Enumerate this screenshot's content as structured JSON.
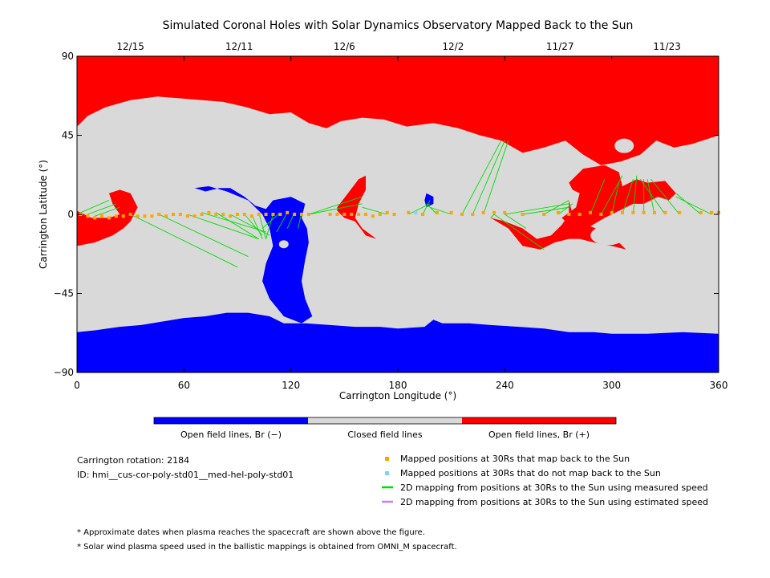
{
  "chart_data": {
    "type": "map",
    "title": "Simulated Coronal Holes with Solar Dynamics Observatory Mapped Back to the Sun",
    "xlabel": "Carrington Longitude (°)",
    "ylabel": "Carrington Latitude (°)",
    "xlim": [
      0,
      360
    ],
    "ylim": [
      -90,
      90
    ],
    "x_ticks": [
      0,
      60,
      120,
      180,
      240,
      300,
      360
    ],
    "y_ticks": [
      -90,
      -45,
      0,
      45,
      90
    ],
    "x_tick_labels": [
      "0",
      "60",
      "120",
      "180",
      "240",
      "300",
      "360"
    ],
    "y_tick_labels": [
      "−90",
      "−45",
      "0",
      "45",
      "90"
    ],
    "top_dates": [
      {
        "label": "12/15",
        "lon": 30
      },
      {
        "label": "12/11",
        "lon": 91
      },
      {
        "label": "12/6",
        "lon": 150
      },
      {
        "label": "12/2",
        "lon": 211
      },
      {
        "label": "11/27",
        "lon": 271
      },
      {
        "label": "11/23",
        "lon": 331
      }
    ],
    "colors": {
      "open_negative": "#0000ff",
      "closed": "#d9d9d9",
      "open_positive": "#ff0000",
      "mapped_yes": "#ffa500",
      "mapped_no": "#87cefa",
      "measured_line": "#00dd00",
      "estimated_line": "#c080ff"
    },
    "colorbar": [
      {
        "label": "Open field lines, Br (−)",
        "color": "#0000ff"
      },
      {
        "label": "Closed field lines",
        "color": "#d9d9d9"
      },
      {
        "label": "Open field lines, Br (+)",
        "color": "#ff0000"
      }
    ],
    "carrington_rotation": "Carrington rotation: 2184",
    "model_id": "ID: hmi__cus-cor-poly-std01__med-hel-poly-std01",
    "legend": [
      {
        "label": "Mapped positions at 30Rs that map back to the Sun",
        "kind": "square",
        "color": "#ffa500"
      },
      {
        "label": "Mapped positions at 30Rs that do not map back to the Sun",
        "kind": "square",
        "color": "#87cefa"
      },
      {
        "label": "2D mapping from positions at 30Rs to the Sun using measured speed",
        "kind": "line",
        "color": "#00dd00"
      },
      {
        "label": "2D mapping from positions at 30Rs to the Sun using estimated speed",
        "kind": "line",
        "color": "#c080ff"
      }
    ],
    "footnotes": [
      "* Approximate dates when plasma reaches the spacecraft are shown above the figure.",
      "* Solar wind plasma speed used in the ballistic mappings is obtained from OMNI_M spacecraft."
    ],
    "regions": {
      "north_positive_cap": [
        [
          0,
          90
        ],
        [
          360,
          90
        ],
        [
          360,
          45
        ],
        [
          345,
          40
        ],
        [
          335,
          38
        ],
        [
          325,
          42
        ],
        [
          316,
          34
        ],
        [
          305,
          30
        ],
        [
          294,
          28
        ],
        [
          284,
          34
        ],
        [
          274,
          42
        ],
        [
          262,
          38
        ],
        [
          250,
          35
        ],
        [
          238,
          42
        ],
        [
          226,
          45
        ],
        [
          214,
          49
        ],
        [
          200,
          52
        ],
        [
          185,
          50
        ],
        [
          172,
          54
        ],
        [
          160,
          55
        ],
        [
          148,
          53
        ],
        [
          140,
          49
        ],
        [
          130,
          52
        ],
        [
          120,
          58
        ],
        [
          108,
          57
        ],
        [
          95,
          61
        ],
        [
          82,
          64
        ],
        [
          70,
          65
        ],
        [
          58,
          66
        ],
        [
          45,
          67
        ],
        [
          30,
          65
        ],
        [
          16,
          61
        ],
        [
          6,
          56
        ],
        [
          0,
          50
        ]
      ],
      "south_negative_cap": [
        [
          0,
          -90
        ],
        [
          360,
          -90
        ],
        [
          360,
          -68
        ],
        [
          340,
          -67
        ],
        [
          320,
          -68
        ],
        [
          300,
          -68
        ],
        [
          290,
          -67
        ],
        [
          276,
          -67
        ],
        [
          262,
          -65
        ],
        [
          248,
          -64
        ],
        [
          232,
          -63
        ],
        [
          220,
          -62
        ],
        [
          205,
          -62
        ],
        [
          200,
          -60
        ],
        [
          195,
          -64
        ],
        [
          180,
          -65
        ],
        [
          170,
          -64
        ],
        [
          156,
          -64
        ],
        [
          142,
          -63
        ],
        [
          128,
          -62
        ],
        [
          116,
          -62
        ],
        [
          108,
          -58
        ],
        [
          96,
          -56
        ],
        [
          84,
          -56
        ],
        [
          72,
          -58
        ],
        [
          60,
          -59
        ],
        [
          48,
          -61
        ],
        [
          36,
          -63
        ],
        [
          24,
          -64
        ],
        [
          10,
          -66
        ],
        [
          0,
          -67
        ]
      ],
      "negative_hole_central": [
        [
          66,
          15
        ],
        [
          74,
          16
        ],
        [
          84,
          13
        ],
        [
          96,
          8
        ],
        [
          104,
          0
        ],
        [
          108,
          -8
        ],
        [
          110,
          -18
        ],
        [
          106,
          -28
        ],
        [
          104,
          -38
        ],
        [
          108,
          -48
        ],
        [
          116,
          -58
        ],
        [
          126,
          -62
        ],
        [
          132,
          -58
        ],
        [
          128,
          -48
        ],
        [
          126,
          -38
        ],
        [
          128,
          -26
        ],
        [
          130,
          -16
        ],
        [
          129,
          -8
        ],
        [
          126,
          -2
        ],
        [
          128,
          6
        ],
        [
          120,
          10
        ],
        [
          110,
          8
        ],
        [
          106,
          3
        ],
        [
          100,
          5
        ],
        [
          94,
          10
        ],
        [
          86,
          15
        ],
        [
          80,
          15
        ],
        [
          72,
          13
        ],
        [
          66,
          15
        ]
      ],
      "negative_hole_small": [
        [
          196,
          12
        ],
        [
          200,
          10
        ],
        [
          200,
          6
        ],
        [
          196,
          4
        ],
        [
          195,
          8
        ]
      ],
      "positive_hole_left": [
        [
          0,
          2
        ],
        [
          8,
          -2
        ],
        [
          18,
          -2
        ],
        [
          24,
          0
        ],
        [
          20,
          6
        ],
        [
          18,
          12
        ],
        [
          24,
          14
        ],
        [
          30,
          12
        ],
        [
          34,
          4
        ],
        [
          30,
          -4
        ],
        [
          26,
          -8
        ],
        [
          20,
          -12
        ],
        [
          10,
          -16
        ],
        [
          0,
          -18
        ]
      ],
      "positive_hole_mid": [
        [
          146,
          2
        ],
        [
          150,
          -2
        ],
        [
          156,
          -4
        ],
        [
          162,
          -12
        ],
        [
          168,
          -14
        ],
        [
          160,
          -8
        ],
        [
          156,
          -2
        ],
        [
          158,
          6
        ],
        [
          162,
          14
        ],
        [
          162,
          22
        ],
        [
          158,
          20
        ],
        [
          152,
          12
        ],
        [
          146,
          4
        ]
      ],
      "positive_band_right": [
        [
          306,
          16
        ],
        [
          314,
          20
        ],
        [
          320,
          18
        ],
        [
          330,
          19
        ],
        [
          336,
          12
        ],
        [
          332,
          8
        ],
        [
          326,
          10
        ],
        [
          318,
          6
        ],
        [
          312,
          6
        ],
        [
          304,
          2
        ],
        [
          296,
          -2
        ],
        [
          286,
          -8
        ],
        [
          276,
          -6
        ],
        [
          272,
          -2
        ],
        [
          280,
          4
        ],
        [
          282,
          12
        ],
        [
          278,
          14
        ],
        [
          276,
          18
        ],
        [
          284,
          26
        ],
        [
          296,
          28
        ],
        [
          304,
          24
        ]
      ],
      "positive_tail_right": [
        [
          276,
          8
        ],
        [
          278,
          0
        ],
        [
          286,
          -6
        ],
        [
          296,
          -10
        ],
        [
          304,
          -16
        ],
        [
          308,
          -20
        ],
        [
          300,
          -18
        ],
        [
          290,
          -16
        ],
        [
          282,
          -14
        ],
        [
          276,
          -14
        ],
        [
          268,
          -16
        ],
        [
          260,
          -20
        ],
        [
          250,
          -18
        ],
        [
          242,
          -8
        ],
        [
          232,
          -2
        ],
        [
          240,
          -4
        ],
        [
          250,
          -8
        ],
        [
          258,
          -14
        ],
        [
          266,
          -12
        ],
        [
          272,
          -6
        ],
        [
          276,
          0
        ]
      ]
    },
    "mapped_points_lon": [
      2,
      6,
      10,
      14,
      18,
      22,
      26,
      30,
      34,
      38,
      42,
      46,
      50,
      54,
      58,
      62,
      66,
      70,
      74,
      78,
      82,
      86,
      90,
      94,
      98,
      102,
      106,
      110,
      114,
      118,
      122,
      126,
      130,
      142,
      146,
      150,
      154,
      158,
      162,
      166,
      170,
      174,
      178,
      186,
      194,
      202,
      210,
      216,
      222,
      228,
      234,
      240,
      250,
      262,
      270,
      276,
      282,
      288,
      294,
      300,
      306,
      312,
      318,
      324,
      330,
      338,
      350,
      356,
      360
    ],
    "mapped_points_lat": [
      0,
      -1,
      -2,
      -1,
      -2,
      -1,
      -1,
      0,
      -1,
      -1,
      -1,
      0,
      -1,
      0,
      0,
      -1,
      -1,
      0,
      1,
      0,
      0,
      -1,
      0,
      0,
      -1,
      0,
      0,
      0,
      0,
      1,
      0,
      0,
      0,
      0,
      0,
      0,
      0,
      0,
      0,
      -1,
      0,
      1,
      0,
      1,
      0,
      1,
      1,
      0,
      0,
      1,
      1,
      1,
      0,
      0,
      1,
      0,
      0,
      1,
      0,
      1,
      1,
      1,
      1,
      1,
      1,
      1,
      1,
      1,
      1
    ],
    "unmapped_points_lon": [
      190
    ],
    "unmapped_points_lat": [
      1
    ],
    "green_lines": [
      [
        [
          2,
          1
        ],
        [
          18,
          8
        ]
      ],
      [
        [
          6,
          0
        ],
        [
          22,
          6
        ]
      ],
      [
        [
          10,
          -1
        ],
        [
          24,
          4
        ]
      ],
      [
        [
          30,
          0
        ],
        [
          90,
          -30
        ]
      ],
      [
        [
          46,
          0
        ],
        [
          96,
          -24
        ]
      ],
      [
        [
          62,
          0
        ],
        [
          102,
          -14
        ]
      ],
      [
        [
          70,
          1
        ],
        [
          106,
          -10
        ]
      ],
      [
        [
          78,
          1
        ],
        [
          102,
          -14
        ]
      ],
      [
        [
          86,
          0
        ],
        [
          108,
          -12
        ]
      ],
      [
        [
          94,
          0
        ],
        [
          104,
          -12
        ]
      ],
      [
        [
          98,
          0
        ],
        [
          104,
          -14
        ]
      ],
      [
        [
          102,
          1
        ],
        [
          106,
          -14
        ]
      ],
      [
        [
          110,
          0
        ],
        [
          106,
          -14
        ]
      ],
      [
        [
          114,
          1
        ],
        [
          104,
          -8
        ]
      ],
      [
        [
          118,
          1
        ],
        [
          112,
          -10
        ]
      ],
      [
        [
          122,
          1
        ],
        [
          118,
          -8
        ]
      ],
      [
        [
          126,
          1
        ],
        [
          124,
          -8
        ]
      ],
      [
        [
          130,
          0
        ],
        [
          160,
          6
        ]
      ],
      [
        [
          130,
          0
        ],
        [
          160,
          10
        ]
      ],
      [
        [
          174,
          0
        ],
        [
          160,
          4
        ]
      ],
      [
        [
          186,
          0
        ],
        [
          198,
          6
        ]
      ],
      [
        [
          194,
          0
        ],
        [
          198,
          8
        ]
      ],
      [
        [
          202,
          0
        ],
        [
          196,
          6
        ]
      ],
      [
        [
          210,
          0
        ],
        [
          198,
          4
        ]
      ],
      [
        [
          216,
          0
        ],
        [
          238,
          42
        ]
      ],
      [
        [
          222,
          0
        ],
        [
          240,
          42
        ]
      ],
      [
        [
          228,
          0
        ],
        [
          242,
          42
        ]
      ],
      [
        [
          234,
          0
        ],
        [
          232,
          -2
        ]
      ],
      [
        [
          240,
          0
        ],
        [
          276,
          6
        ]
      ],
      [
        [
          250,
          0
        ],
        [
          276,
          4
        ]
      ],
      [
        [
          262,
          0
        ],
        [
          276,
          8
        ]
      ],
      [
        [
          270,
          0
        ],
        [
          278,
          6
        ]
      ],
      [
        [
          240,
          0
        ],
        [
          252,
          -8
        ]
      ],
      [
        [
          234,
          0
        ],
        [
          262,
          -20
        ]
      ],
      [
        [
          288,
          0
        ],
        [
          296,
          20
        ]
      ],
      [
        [
          294,
          0
        ],
        [
          306,
          22
        ]
      ],
      [
        [
          300,
          0
        ],
        [
          304,
          18
        ]
      ],
      [
        [
          306,
          0
        ],
        [
          312,
          20
        ]
      ],
      [
        [
          312,
          0
        ],
        [
          314,
          22
        ]
      ],
      [
        [
          318,
          0
        ],
        [
          318,
          20
        ]
      ],
      [
        [
          324,
          0
        ],
        [
          320,
          20
        ]
      ],
      [
        [
          330,
          0
        ],
        [
          316,
          20
        ]
      ],
      [
        [
          338,
          0
        ],
        [
          322,
          20
        ]
      ],
      [
        [
          350,
          0
        ],
        [
          336,
          12
        ]
      ],
      [
        [
          356,
          0
        ],
        [
          336,
          10
        ]
      ]
    ]
  }
}
